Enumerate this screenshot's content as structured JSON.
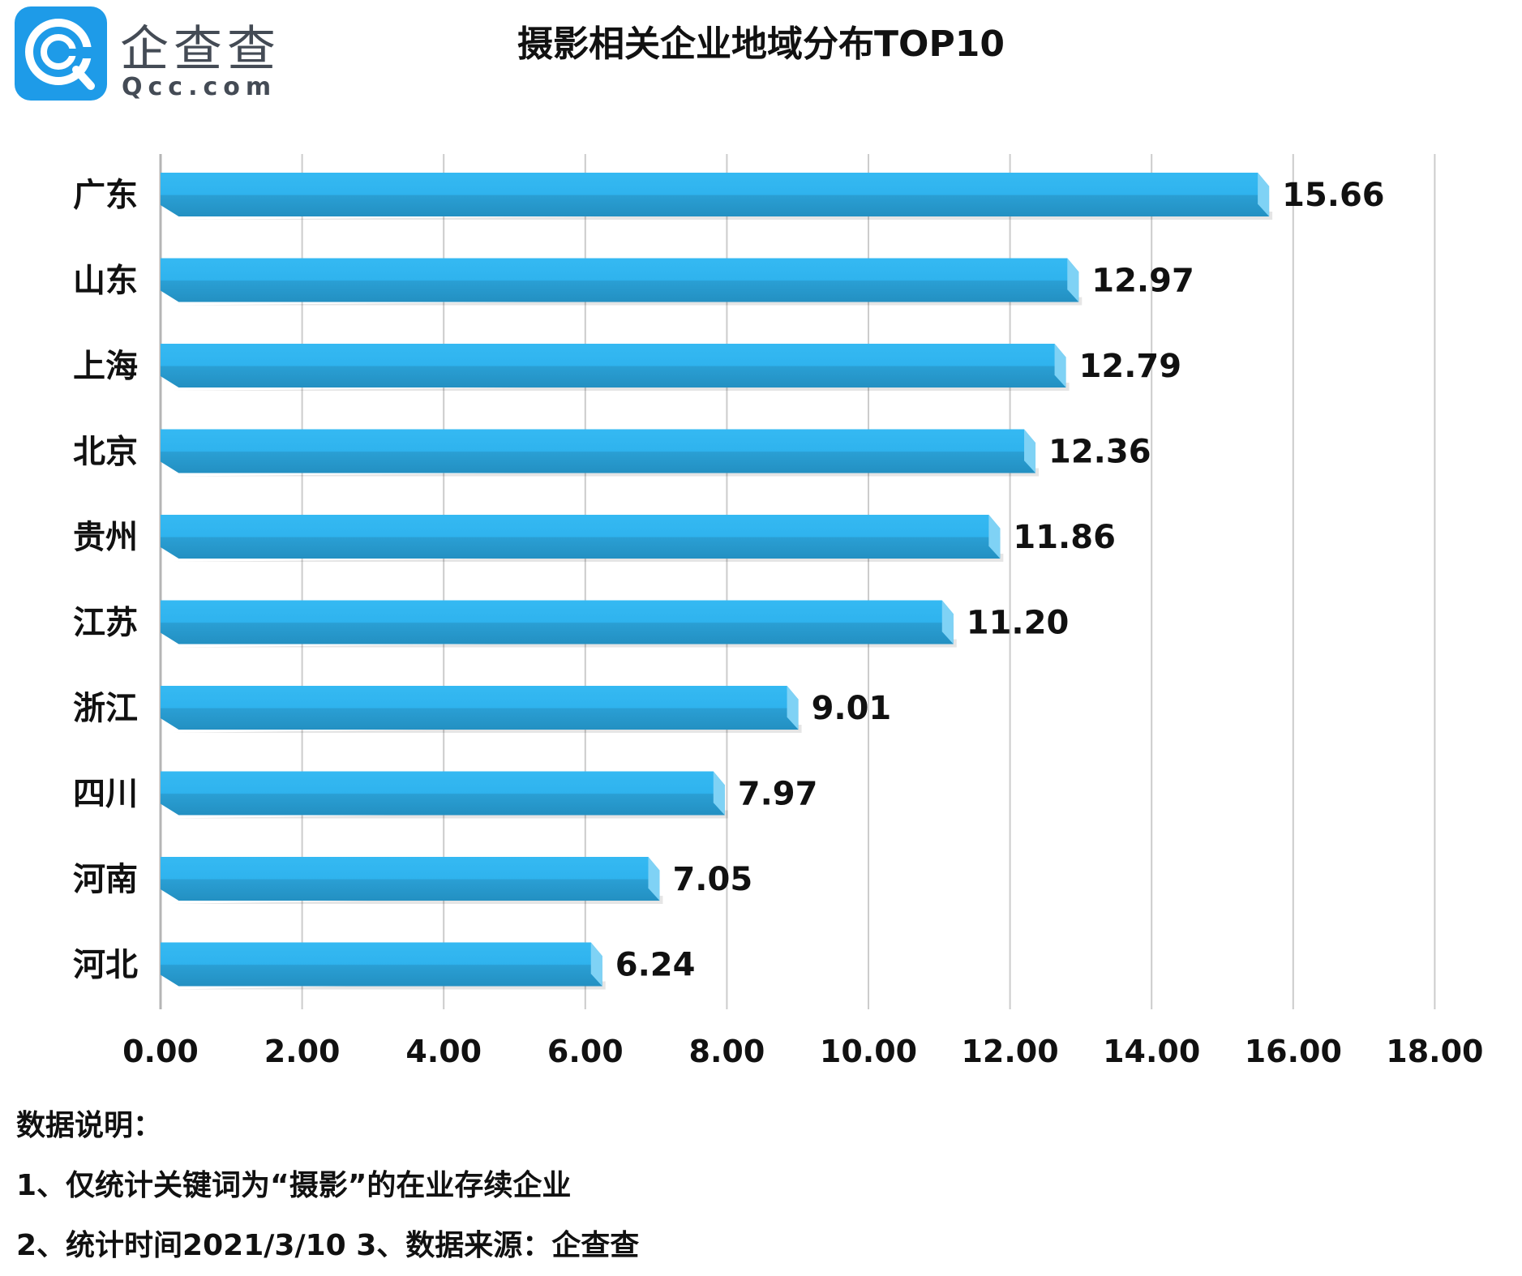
{
  "brand": {
    "name": "企查查",
    "domain": "Qcc.com",
    "colors": {
      "primary": "#1e9be8",
      "light": "#4fc3f7"
    }
  },
  "chart_data": {
    "type": "bar",
    "orientation": "horizontal",
    "title": "摄影相关企业地域分布TOP10",
    "categories": [
      "广东",
      "山东",
      "上海",
      "北京",
      "贵州",
      "江苏",
      "浙江",
      "四川",
      "河南",
      "河北"
    ],
    "values": [
      15.66,
      12.97,
      12.79,
      12.36,
      11.86,
      11.2,
      9.01,
      7.97,
      7.05,
      6.24
    ],
    "value_labels": [
      "15.66",
      "12.97",
      "12.79",
      "12.36",
      "11.86",
      "11.20",
      "9.01",
      "7.97",
      "7.05",
      "6.24"
    ],
    "xlim": [
      0,
      18
    ],
    "x_ticks": [
      "0.00",
      "2.00",
      "4.00",
      "6.00",
      "8.00",
      "10.00",
      "12.00",
      "14.00",
      "16.00",
      "18.00"
    ],
    "grid": "vertical",
    "legend": "none",
    "colors": {
      "bar_top": "#2fb5ef",
      "bar_bottom": "#2596c8",
      "bar_end": "#7fd2f5",
      "grid": "#cccccc"
    }
  },
  "notes": [
    "数据说明：",
    "1、仅统计关键词为“摄影”的在业存续企业",
    "2、统计时间2021/3/10   3、数据来源：企查查"
  ]
}
